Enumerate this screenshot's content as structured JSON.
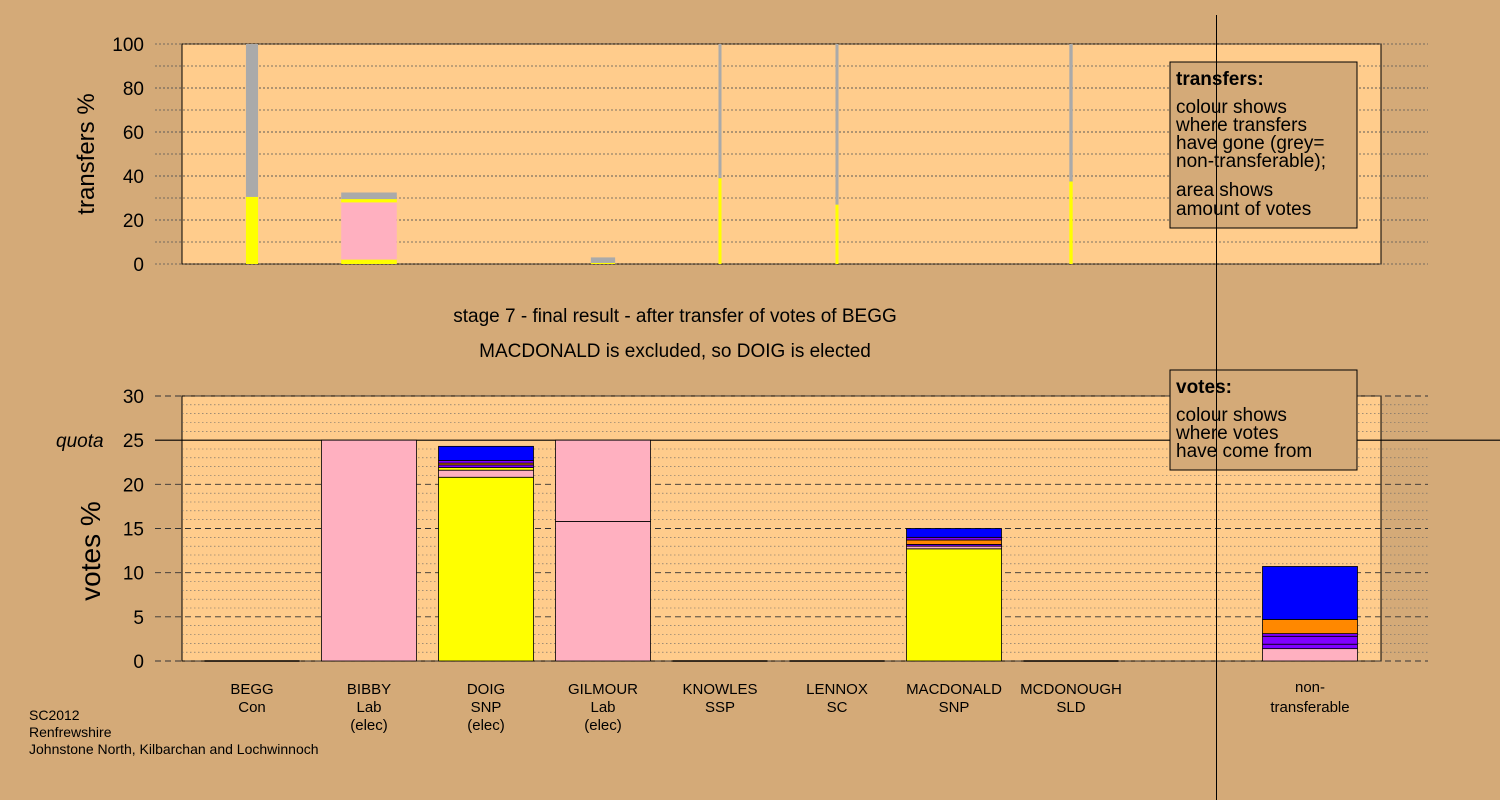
{
  "colors": {
    "background": "#d4aa78",
    "plot_area": "#ffcc8c",
    "Con": "#0000ff",
    "Lab": "#ffb0c0",
    "SNP": "#ffff00",
    "SSP": "#ff8800",
    "SC": "#7f00ff",
    "SLD": "#c00000",
    "grey": "#aaaaaa"
  },
  "footer": {
    "line1": "SC2012",
    "line2": "Renfrewshire",
    "line3": "Johnstone North, Kilbarchan and Lochwinnoch"
  },
  "captions": {
    "line1": "stage 7 - final result - after transfer of votes of BEGG",
    "line2": "MACDONALD is excluded, so DOIG is elected"
  },
  "chart_data": [
    {
      "type": "bar",
      "ylabel": "transfers %",
      "ylim": [
        0,
        100
      ],
      "yticks": [
        0,
        20,
        40,
        60,
        80,
        100
      ],
      "grid": true,
      "legend": {
        "title": "transfers:",
        "lines1": [
          "colour shows",
          "where transfers",
          "have gone (grey=",
          "non-transferable);"
        ],
        "lines2": [
          "area shows",
          "amount of votes"
        ],
        "placement": "top-right"
      },
      "bars": [
        {
          "candidate": "BEGG",
          "width_votes_pct": 2.9,
          "segments": [
            {
              "party": "SNP",
              "value": 30.5
            },
            {
              "party": "grey",
              "value": 69.5
            }
          ]
        },
        {
          "candidate": "BIBBY",
          "width_votes_pct": 13.3,
          "segments": [
            {
              "party": "SNP",
              "value": 2
            },
            {
              "party": "Lab",
              "value": 26
            },
            {
              "party": "SNP",
              "value": 1.5
            },
            {
              "party": "grey",
              "value": 3
            }
          ]
        },
        {
          "candidate": "GILMOUR",
          "width_votes_pct": 5.8,
          "segments": [
            {
              "party": "SNP",
              "value": 0.5
            },
            {
              "party": "grey",
              "value": 2.5
            }
          ]
        },
        {
          "candidate": "KNOWLES",
          "width_votes_pct": 0.4,
          "segments": [
            {
              "party": "SNP",
              "value": 39
            },
            {
              "party": "grey",
              "value": 61
            }
          ]
        },
        {
          "candidate": "LENNOX",
          "width_votes_pct": 0.3,
          "segments": [
            {
              "party": "SNP",
              "value": 27
            },
            {
              "party": "grey",
              "value": 73
            }
          ]
        },
        {
          "candidate": "MCDONOUGH",
          "width_votes_pct": 0.8,
          "segments": [
            {
              "party": "SNP",
              "value": 37.5
            },
            {
              "party": "grey",
              "value": 62.5
            }
          ]
        }
      ]
    },
    {
      "type": "bar",
      "ylabel": "votes %",
      "ylim": [
        0,
        30
      ],
      "yticks": [
        0,
        5,
        10,
        15,
        20,
        25,
        30
      ],
      "quota": 25,
      "quota_label": "quota",
      "grid": true,
      "legend": {
        "title": "votes:",
        "lines": [
          "colour shows",
          "where votes",
          "have come from"
        ],
        "placement": "top-right"
      },
      "categories": [
        {
          "name": "BEGG",
          "party": "Con",
          "status": ""
        },
        {
          "name": "BIBBY",
          "party": "Lab",
          "status": "(elec)"
        },
        {
          "name": "DOIG",
          "party": "SNP",
          "status": "(elec)"
        },
        {
          "name": "GILMOUR",
          "party": "Lab",
          "status": "(elec)"
        },
        {
          "name": "KNOWLES",
          "party": "SSP",
          "status": ""
        },
        {
          "name": "LENNOX",
          "party": "SC",
          "status": ""
        },
        {
          "name": "MACDONALD",
          "party": "SNP",
          "status": ""
        },
        {
          "name": "MCDONOUGH",
          "party": "SLD",
          "status": ""
        }
      ],
      "nontransferable_label_line1": "non-",
      "nontransferable_label_line2": "transferable",
      "stacks": [
        {
          "candidate": "BEGG",
          "segments": []
        },
        {
          "candidate": "BIBBY",
          "segments": [
            {
              "party": "Lab",
              "value": 25
            }
          ]
        },
        {
          "candidate": "DOIG",
          "segments": [
            {
              "party": "SNP",
              "value": 20.8
            },
            {
              "party": "Lab",
              "value": 0.8
            },
            {
              "party": "SNP",
              "value": 0.3
            },
            {
              "party": "SC",
              "value": 0.3
            },
            {
              "party": "SSP",
              "value": 0.2
            },
            {
              "party": "SC",
              "value": 0.3
            },
            {
              "party": "Con",
              "value": 1.6
            }
          ]
        },
        {
          "candidate": "GILMOUR",
          "segments": [
            {
              "party": "Lab",
              "value": 15.8
            },
            {
              "party": "Lab",
              "value": 9.2
            }
          ]
        },
        {
          "candidate": "KNOWLES",
          "segments": []
        },
        {
          "candidate": "LENNOX",
          "segments": []
        },
        {
          "candidate": "MACDONALD",
          "segments": [
            {
              "party": "SNP",
              "value": 12.7
            },
            {
              "party": "Lab",
              "value": 0.3
            },
            {
              "party": "SC",
              "value": 0.2
            },
            {
              "party": "SSP",
              "value": 0.5
            },
            {
              "party": "SC",
              "value": 0.3
            },
            {
              "party": "Con",
              "value": 1.0
            }
          ]
        },
        {
          "candidate": "MCDONOUGH",
          "segments": []
        },
        {
          "candidate": "non-transferable",
          "segments": [
            {
              "party": "Lab",
              "value": 1.4
            },
            {
              "party": "SC",
              "value": 0.5
            },
            {
              "party": "SC",
              "value": 0.9
            },
            {
              "party": "SC",
              "value": 0.3
            },
            {
              "party": "SSP",
              "value": 1.6
            },
            {
              "party": "Con",
              "value": 6.0
            }
          ]
        }
      ]
    }
  ]
}
